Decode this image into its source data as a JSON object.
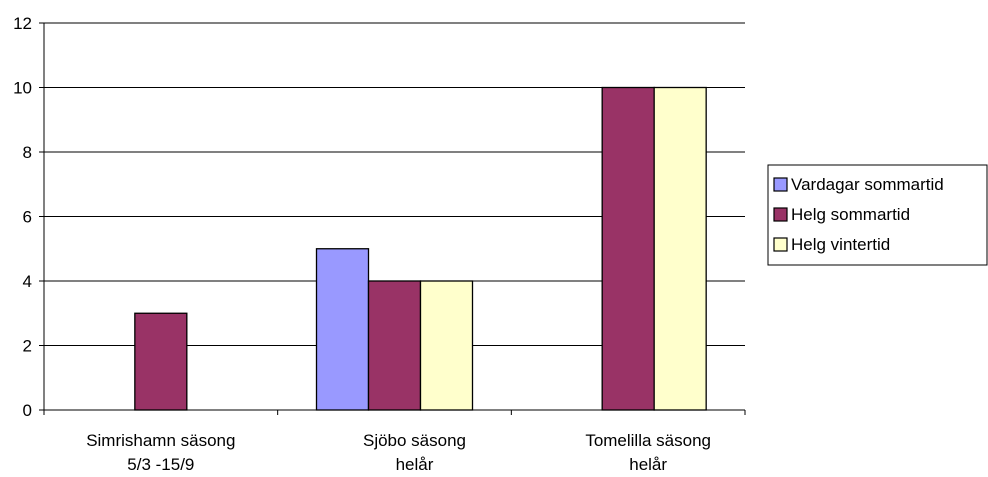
{
  "chart_data": {
    "type": "bar",
    "categories": [
      [
        "Simrishamn säsong",
        "5/3 -15/9"
      ],
      [
        "Sjöbo säsong",
        "helår"
      ],
      [
        "Tomelilla säsong",
        "helår"
      ]
    ],
    "series": [
      {
        "name": "Vardagar sommartid",
        "color": "#9999ff",
        "values": [
          0,
          5,
          0
        ]
      },
      {
        "name": "Helg sommartid",
        "color": "#993366",
        "values": [
          3,
          4,
          10
        ]
      },
      {
        "name": "Helg vintertid",
        "color": "#ffffcc",
        "values": [
          0,
          4,
          10
        ]
      }
    ],
    "ylim": [
      0,
      12
    ],
    "yticks": [
      "0",
      "2",
      "4",
      "6",
      "8",
      "10",
      "12"
    ],
    "grid": true,
    "legend": "right",
    "title": "",
    "xlabel": "",
    "ylabel": ""
  }
}
